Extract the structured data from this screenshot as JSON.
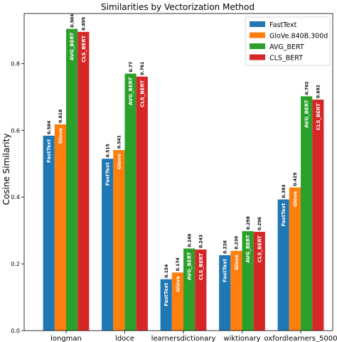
{
  "chart_data": {
    "type": "bar",
    "title": "Similarities by Vectorization Method",
    "ylabel": "Cosine Similarity",
    "xlabel": "",
    "ylim": [
      0,
      0.95
    ],
    "yticks": [
      "0.0",
      "0.2",
      "0.4",
      "0.6",
      "0.8"
    ],
    "categories": [
      "longman",
      "ldoce",
      "learnersdictionary",
      "wiktionary",
      "oxfordlearners_5000"
    ],
    "legend_position": "top-right",
    "grid": false,
    "series": [
      {
        "name": "FastText",
        "short_label": "FastText",
        "color": "#1f77b4",
        "values": [
          0.584,
          0.515,
          0.154,
          0.226,
          0.393
        ],
        "value_labels": [
          "0.584",
          "0.515",
          "0.154",
          "0.226",
          "0.393"
        ]
      },
      {
        "name": "GloVe.840B.300d",
        "short_label": "Glove",
        "color": "#ff7f0e",
        "values": [
          0.618,
          0.541,
          0.174,
          0.239,
          0.429
        ],
        "value_labels": [
          "0.618",
          "0.541",
          "0.174",
          "0.239",
          "0.429"
        ]
      },
      {
        "name": "AVG_BERT",
        "short_label": "AVG_BERT",
        "color": "#2ca02c",
        "values": [
          0.904,
          0.77,
          0.246,
          0.298,
          0.702
        ],
        "value_labels": [
          "0.904",
          "0.77",
          "0.246",
          "0.298",
          "0.702"
        ]
      },
      {
        "name": "CLS_BERT",
        "short_label": "CLS_BERT",
        "color": "#d62728",
        "values": [
          0.895,
          0.761,
          0.243,
          0.296,
          0.692
        ],
        "value_labels": [
          "0.895",
          "0.761",
          "0.243",
          "0.296",
          "0.692"
        ]
      }
    ]
  }
}
